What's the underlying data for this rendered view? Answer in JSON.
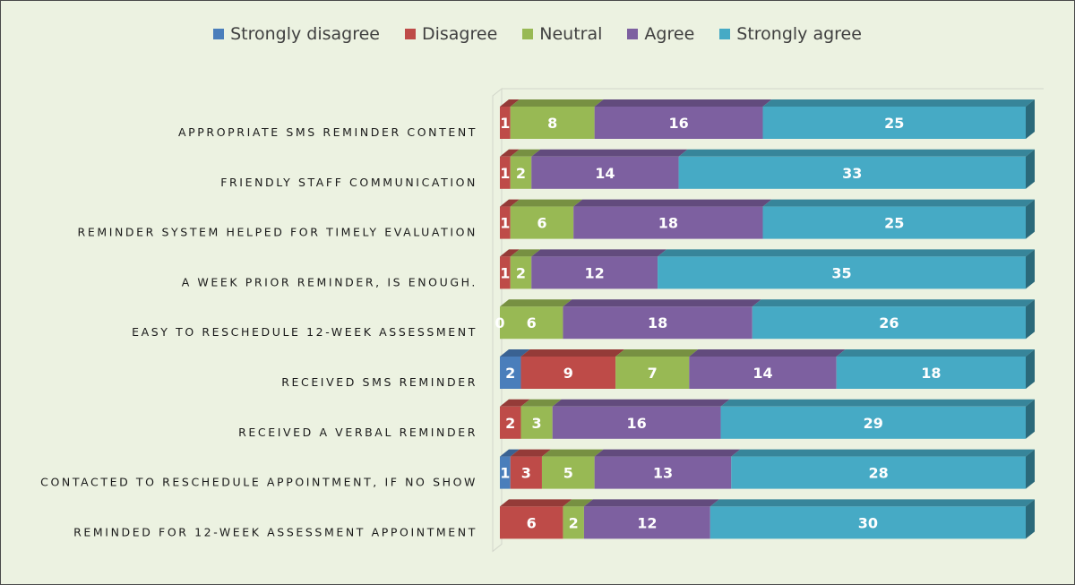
{
  "chart_data": {
    "type": "bar",
    "orientation": "horizontal",
    "stacked": true,
    "three_d": true,
    "legend_position": "top",
    "grid": false,
    "categories": [
      "APPROPRIATE SMS REMINDER CONTENT",
      "FRIENDLY STAFF COMMUNICATION",
      "REMINDER SYSTEM HELPED FOR TIMELY EVALUATION",
      "A WEEK PRIOR REMINDER, IS ENOUGH.",
      "EASY TO RESCHEDULE 12-WEEK ASSESSMENT",
      "RECEIVED SMS REMINDER",
      "RECEIVED A VERBAL REMINDER",
      "CONTACTED TO RESCHEDULE APPOINTMENT, IF NO SHOW",
      "REMINDED FOR 12-WEEK ASSESSMENT APPOINTMENT"
    ],
    "series": [
      {
        "name": "Strongly disagree",
        "color": "#4a7ebb",
        "values": [
          0,
          0,
          0,
          0,
          0,
          2,
          0,
          1,
          0
        ]
      },
      {
        "name": "Disagree",
        "color": "#be4b48",
        "values": [
          1,
          1,
          1,
          1,
          0,
          9,
          2,
          3,
          6
        ]
      },
      {
        "name": "Neutral",
        "color": "#98b954",
        "values": [
          8,
          2,
          6,
          2,
          6,
          7,
          3,
          5,
          2
        ]
      },
      {
        "name": "Agree",
        "color": "#7d60a0",
        "values": [
          16,
          14,
          18,
          12,
          18,
          14,
          16,
          13,
          12
        ]
      },
      {
        "name": "Strongly agree",
        "color": "#46aac5",
        "values": [
          25,
          33,
          25,
          35,
          26,
          18,
          29,
          28,
          30
        ]
      }
    ]
  }
}
